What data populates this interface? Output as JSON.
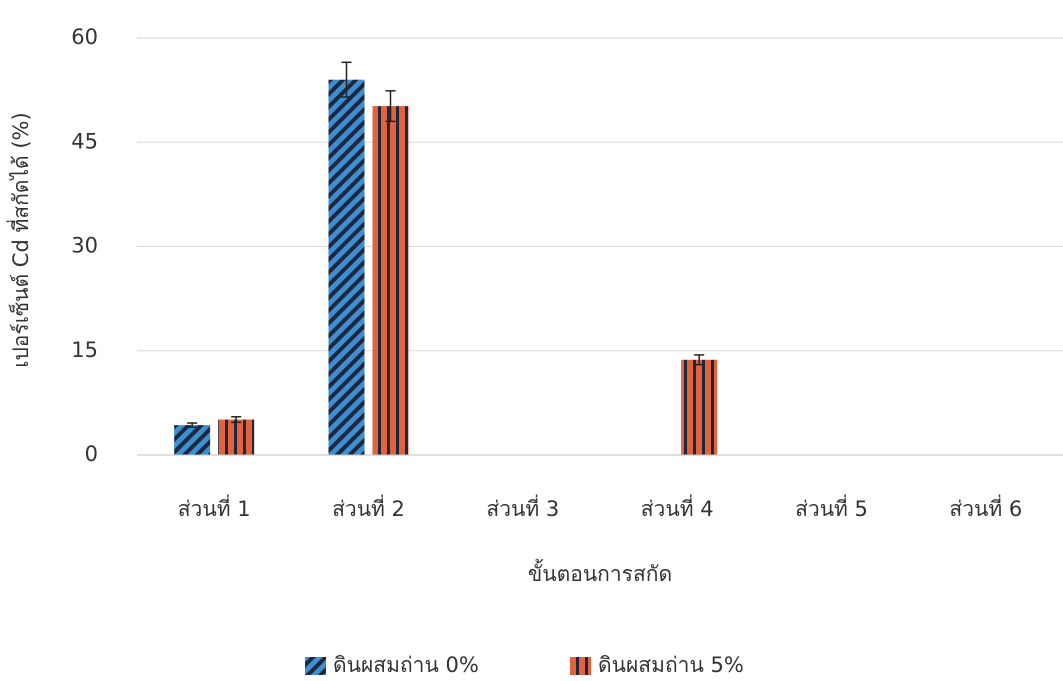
{
  "chart_data": {
    "type": "bar",
    "y_label": "เปอร์เซ็นต์ Cd ที่สกัดได้ (%)",
    "x_label": "ขั้นตอนการสกัด",
    "categories": [
      "ส่วนที่ 1",
      "ส่วนที่ 2",
      "ส่วนที่ 3",
      "ส่วนที่ 4",
      "ส่วนที่ 5",
      "ส่วนที่ 6"
    ],
    "series": [
      {
        "name": "ดินผสมถ่าน 0%",
        "color": "#3d8fd1",
        "pattern": "diagonal",
        "values": [
          4.3,
          54,
          0,
          0,
          0,
          0
        ],
        "errors": [
          0.3,
          2.5,
          null,
          null,
          null,
          null
        ]
      },
      {
        "name": "ดินผสมถ่าน 5%",
        "color": "#e2623c",
        "pattern": "vertical",
        "values": [
          5.1,
          50.2,
          0,
          13.7,
          0,
          0
        ],
        "errors": [
          0.4,
          2.2,
          null,
          0.7,
          null,
          null
        ]
      }
    ],
    "ylim": [
      0,
      60
    ],
    "yticks": [
      0,
      15,
      30,
      45,
      60
    ],
    "grid": true,
    "legend": "bottom"
  }
}
